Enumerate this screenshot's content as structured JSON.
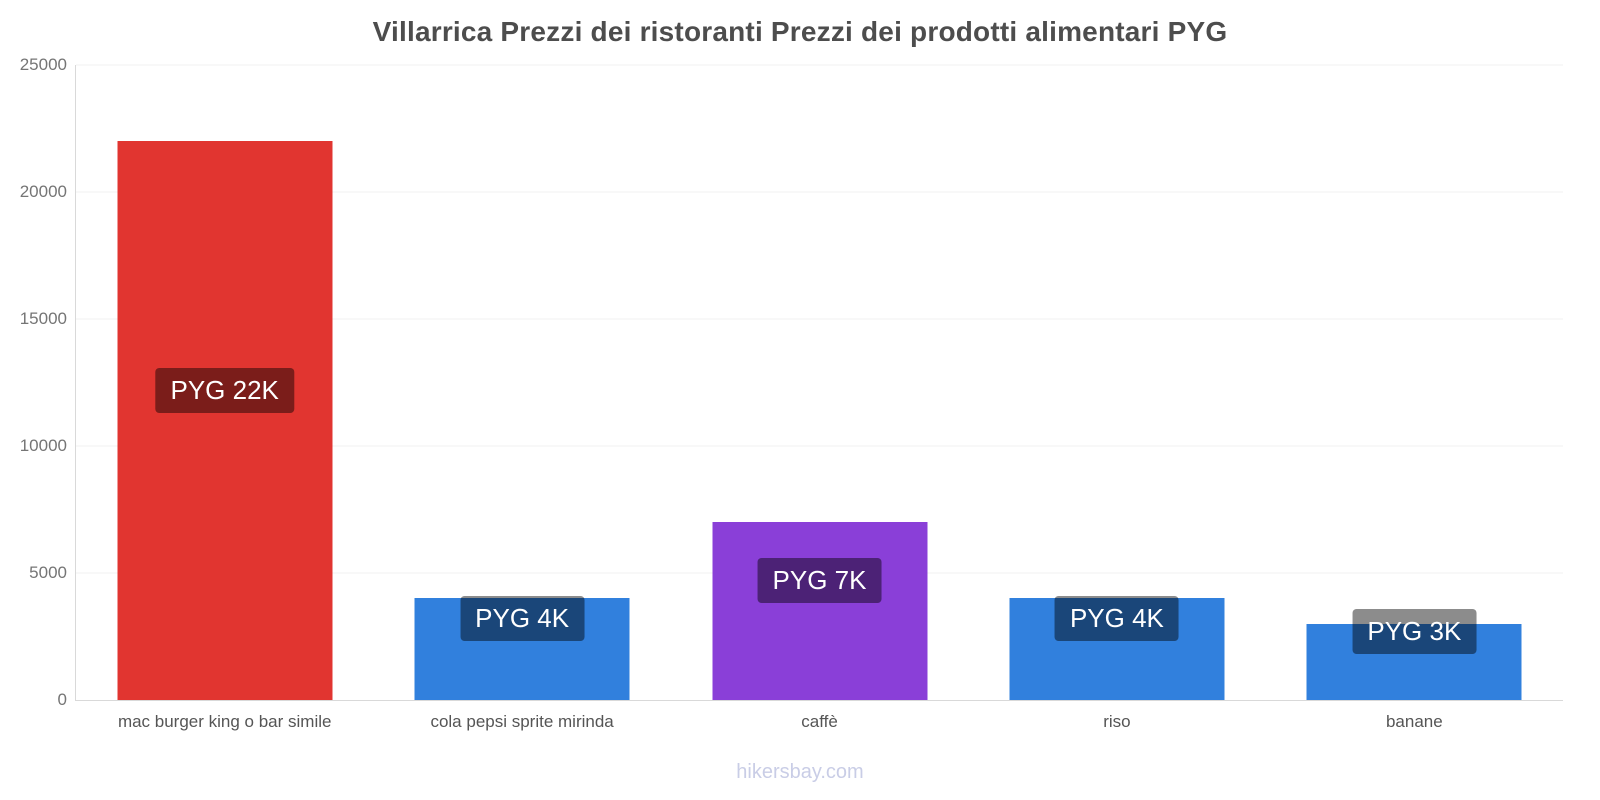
{
  "title": "Villarrica Prezzi dei ristoranti Prezzi dei prodotti alimentari PYG",
  "footer": "hikersbay.com",
  "colors": {
    "red_bar": "#e13530",
    "blue_bar": "#3180dd",
    "purple_bar": "#8a3fd8",
    "label_overlay": "rgba(0,0,0,0.45)",
    "title_text": "#4d4d4d",
    "axis_text": "#757575",
    "category_text": "#555555",
    "footer_text": "#c9cde6"
  },
  "chart_data": {
    "type": "bar",
    "title": "Villarrica Prezzi dei ristoranti Prezzi dei prodotti alimentari PYG",
    "categories": [
      "mac burger king o bar simile",
      "cola pepsi sprite mirinda",
      "caffè",
      "riso",
      "banane"
    ],
    "values": [
      22000,
      4000,
      7000,
      4000,
      3000
    ],
    "value_labels": [
      "PYG 22K",
      "PYG 4K",
      "PYG 7K",
      "PYG 4K",
      "PYG 3K"
    ],
    "bar_colors": [
      "#e13530",
      "#3180dd",
      "#8a3fd8",
      "#3180dd",
      "#3180dd"
    ],
    "xlabel": "",
    "ylabel": "",
    "ylim": [
      0,
      25000
    ],
    "yticks": [
      0,
      5000,
      10000,
      15000,
      20000,
      25000
    ],
    "grid": "horizontal-faint",
    "legend": "none",
    "currency": "PYG",
    "watermark": "hikersbay.com"
  }
}
